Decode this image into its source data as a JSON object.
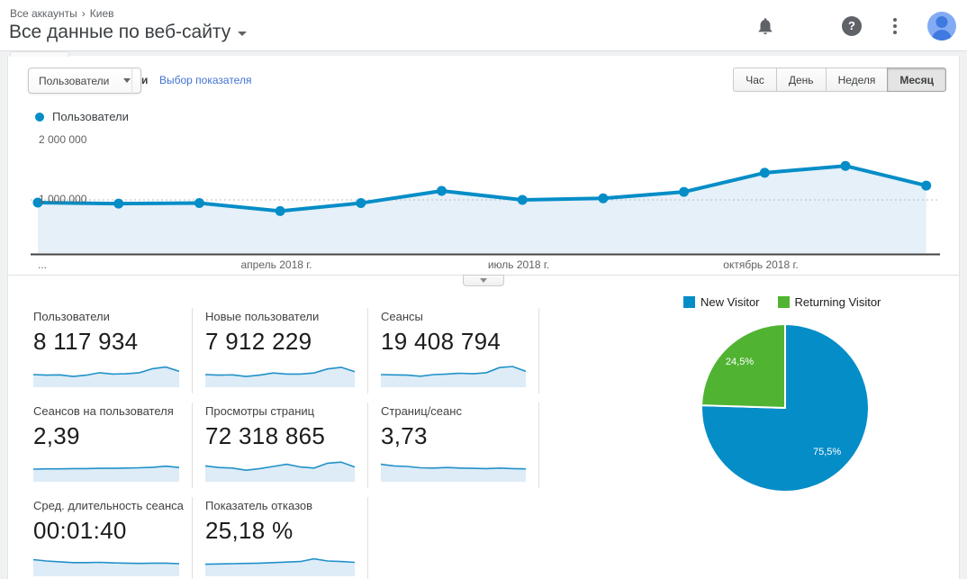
{
  "header": {
    "breadcrumb": {
      "items": [
        "Все аккаунты",
        "Киев"
      ],
      "separator": "›"
    },
    "title": "Все данные по веб-сайту",
    "icons": [
      {
        "name": "notifications-bell-icon"
      },
      {
        "name": "apps-grid-icon",
        "glyph": "grid-2x2"
      },
      {
        "name": "help-icon",
        "glyph": "?"
      },
      {
        "name": "kebab-menu-icon"
      },
      {
        "name": "user-avatar"
      }
    ]
  },
  "controls": {
    "metric_selected": "Пользователи",
    "conjunction": "и",
    "metric_link": "Выбор показателя",
    "granularity_buttons": [
      "Час",
      "День",
      "Неделя",
      "Месяц"
    ],
    "granularity_selected": "Месяц"
  },
  "chart_legend": {
    "label": "Пользователи"
  },
  "chart_data": [
    {
      "type": "area",
      "series_name": "Пользователи",
      "values": [
        950000,
        930000,
        940000,
        790000,
        940000,
        1170000,
        1000000,
        1030000,
        1150000,
        1510000,
        1640000,
        1270000
      ],
      "x_ticks": [
        {
          "index": 0,
          "label": "..."
        },
        {
          "index": 3,
          "label": "апрель 2018 г."
        },
        {
          "index": 6,
          "label": "июль 2018 г."
        },
        {
          "index": 9,
          "label": "октябрь 2018 г."
        }
      ],
      "y_tick_labels": [
        "2 000 000",
        "1 000 000"
      ],
      "ylim": [
        0,
        2000000
      ],
      "gridline_value": 1000000,
      "grid": "dotted-at-1M",
      "legend_position": "top-left",
      "line_color": "#058dc7",
      "fill_color": "#e5f0f8"
    },
    {
      "type": "pie",
      "series": [
        {
          "name": "New Visitor",
          "value_pct": 75.5,
          "label": "75,5%",
          "color": "#058dc7"
        },
        {
          "name": "Returning Visitor",
          "value_pct": 24.5,
          "label": "24,5%",
          "color": "#50b432"
        }
      ],
      "legend_position": "top"
    }
  ],
  "cards": [
    {
      "label": "Пользователи",
      "value": "8 117 934",
      "spark": [
        0.4,
        0.38,
        0.39,
        0.33,
        0.38,
        0.47,
        0.42,
        0.43,
        0.47,
        0.62,
        0.68,
        0.52
      ]
    },
    {
      "label": "Новые пользователи",
      "value": "7 912 229",
      "spark": [
        0.4,
        0.38,
        0.39,
        0.33,
        0.38,
        0.46,
        0.42,
        0.42,
        0.46,
        0.61,
        0.67,
        0.51
      ]
    },
    {
      "label": "Сеансы",
      "value": "19 408 794",
      "spark": [
        0.4,
        0.39,
        0.38,
        0.34,
        0.4,
        0.42,
        0.45,
        0.43,
        0.47,
        0.66,
        0.7,
        0.52
      ]
    },
    {
      "label": "Сеансов на пользователя",
      "value": "2,39",
      "spark": [
        0.4,
        0.41,
        0.41,
        0.42,
        0.42,
        0.43,
        0.43,
        0.44,
        0.45,
        0.47,
        0.51,
        0.46
      ]
    },
    {
      "label": "Просмотры страниц",
      "value": "72 318 865",
      "spark": [
        0.52,
        0.46,
        0.44,
        0.36,
        0.42,
        0.5,
        0.58,
        0.48,
        0.44,
        0.62,
        0.66,
        0.48
      ]
    },
    {
      "label": "Страниц/сеанс",
      "value": "3,73",
      "spark": [
        0.58,
        0.52,
        0.5,
        0.45,
        0.44,
        0.46,
        0.44,
        0.43,
        0.42,
        0.44,
        0.42,
        0.41
      ]
    },
    {
      "label": "Сред. длительность сеанса",
      "value": "00:01:40",
      "spark": [
        0.55,
        0.5,
        0.47,
        0.44,
        0.44,
        0.45,
        0.43,
        0.42,
        0.41,
        0.42,
        0.42,
        0.4
      ]
    },
    {
      "label": "Показатель отказов",
      "value": "25,18 %",
      "spark": [
        0.38,
        0.39,
        0.4,
        0.41,
        0.42,
        0.44,
        0.46,
        0.48,
        0.58,
        0.5,
        0.48,
        0.45
      ]
    }
  ],
  "colors": {
    "accent_blue": "#058dc7",
    "accent_green": "#50b432",
    "area_fill": "#e5f0f8",
    "link_blue": "#4272d4",
    "icon_gray": "#5f6368"
  }
}
